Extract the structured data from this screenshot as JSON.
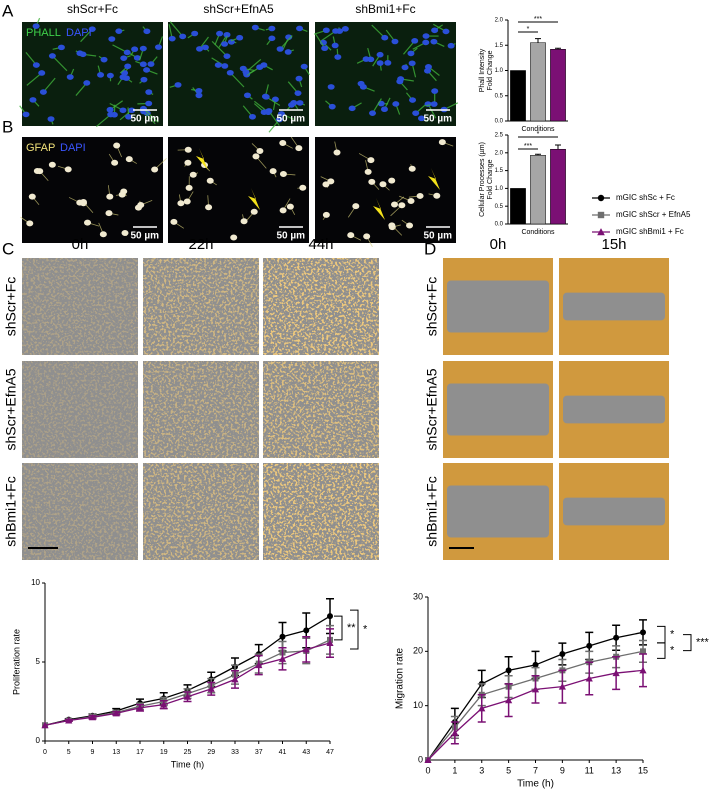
{
  "panel_labels": [
    "A",
    "B",
    "C",
    "D"
  ],
  "panel_a": {
    "columns": [
      "shScr+Fc",
      "shScr+EfnA5",
      "shBmi1+Fc"
    ],
    "stains": [
      "PHALL",
      "DAPI"
    ]
  },
  "panel_b": {
    "stains": [
      "GFAP",
      "DAPI"
    ]
  },
  "scale_bar": "50 µm",
  "panel_c": {
    "times": [
      "0h",
      "22h",
      "44h"
    ],
    "rows": [
      "shScr+Fc",
      "shScr+EfnA5",
      "shBmi1+Fc"
    ]
  },
  "panel_d": {
    "times": [
      "0h",
      "15h"
    ],
    "rows": [
      "shScr+Fc",
      "shScr+EfnA5",
      "shBmi1+Fc"
    ]
  },
  "chart_data": [
    {
      "type": "bar",
      "ylabel": "Phall Intensity\nFold Change",
      "xlabel": "Conditions",
      "categories": [
        null,
        null,
        null
      ],
      "values": [
        1.0,
        1.55,
        1.42
      ],
      "errors": [
        0,
        0.08,
        0.02
      ],
      "colors": [
        "#000000",
        "#a6a6a6",
        "#7b1074"
      ],
      "ylim": [
        0,
        2
      ],
      "yticks": [
        {
          "value": 0,
          "label": "0.0"
        },
        {
          "value": 0.5,
          "label": "0.5"
        },
        {
          "value": 1,
          "label": "1.0"
        },
        {
          "value": 1.5,
          "label": "1.5"
        },
        {
          "value": 2,
          "label": "2.0"
        }
      ],
      "annotations": [
        "***",
        "*"
      ]
    },
    {
      "type": "bar",
      "ylabel": "Cellular Processes (µm)\nFold Change",
      "xlabel": "Conditions",
      "categories": [
        null,
        null,
        null
      ],
      "values": [
        1.0,
        1.93,
        2.1
      ],
      "errors": [
        0,
        0.03,
        0.12
      ],
      "colors": [
        "#000000",
        "#a6a6a6",
        "#7b1074"
      ],
      "ylim": [
        0,
        2.5
      ],
      "yticks": [
        {
          "value": 0,
          "label": "0.0"
        },
        {
          "value": 0.5,
          "label": "0.5"
        },
        {
          "value": 1,
          "label": "1.0"
        },
        {
          "value": 1.5,
          "label": "1.5"
        },
        {
          "value": 2,
          "label": "2.0"
        },
        {
          "value": 2.5,
          "label": "2.5"
        }
      ],
      "annotations": [
        "*",
        "***"
      ]
    },
    {
      "type": "line",
      "ylabel": "Proliferation rate",
      "xlabel": "Time (h)",
      "categories": [
        "0",
        "5",
        "9",
        "13",
        "17",
        "19",
        "25",
        "29",
        "33",
        "37",
        "41",
        "43",
        "47"
      ],
      "ylim": [
        0,
        10
      ],
      "yticks": [
        0,
        5,
        10
      ],
      "series": [
        {
          "name": "mGIC shSc + Fc",
          "color": "#000000",
          "marker": "circle",
          "values": [
            1,
            1.35,
            1.6,
            1.9,
            2.4,
            2.7,
            3.2,
            3.9,
            4.7,
            5.5,
            6.6,
            7.0,
            7.9
          ],
          "errors": [
            0,
            0.05,
            0.1,
            0.15,
            0.25,
            0.35,
            0.35,
            0.45,
            0.55,
            0.6,
            0.9,
            1.1,
            1.1
          ]
        },
        {
          "name": "mGIC shScr + EfnA5",
          "color": "#6e6e6e",
          "marker": "square",
          "values": [
            1,
            1.3,
            1.55,
            1.8,
            2.2,
            2.5,
            3.0,
            3.5,
            4.2,
            4.9,
            5.6,
            5.7,
            6.4
          ],
          "errors": [
            0,
            0.05,
            0.1,
            0.1,
            0.2,
            0.25,
            0.3,
            0.45,
            0.6,
            0.6,
            0.7,
            0.8,
            0.9
          ]
        },
        {
          "name": "mGIC shBmi1 + Fc",
          "color": "#7b1074",
          "marker": "triangle",
          "values": [
            1,
            1.3,
            1.5,
            1.75,
            2.1,
            2.3,
            2.8,
            3.3,
            3.9,
            4.8,
            5.2,
            5.8,
            6.2
          ],
          "errors": [
            0,
            0.05,
            0.1,
            0.1,
            0.2,
            0.25,
            0.3,
            0.4,
            0.55,
            0.6,
            0.7,
            0.8,
            0.9
          ]
        }
      ],
      "annotations": [
        "**",
        "*"
      ]
    },
    {
      "type": "line",
      "ylabel": "Migration rate",
      "xlabel": "Time (h)",
      "categories": [
        "0",
        "1",
        "3",
        "5",
        "7",
        "9",
        "11",
        "13",
        "15"
      ],
      "ylim": [
        0,
        30
      ],
      "yticks": [
        0,
        10,
        20,
        30
      ],
      "series": [
        {
          "name": "mGIC shSc + Fc",
          "color": "#000000",
          "marker": "circle",
          "values": [
            0,
            7,
            14,
            16.5,
            17.5,
            19.5,
            21,
            22.5,
            23.5
          ],
          "errors": [
            0,
            2.5,
            2.5,
            2.5,
            2.5,
            2,
            2.5,
            2.3,
            2.3
          ]
        },
        {
          "name": "mGIC shScr + EfnA5",
          "color": "#6e6e6e",
          "marker": "square",
          "values": [
            0,
            6,
            12,
            13.5,
            15,
            16.5,
            18,
            19,
            20
          ],
          "errors": [
            0,
            2,
            2,
            2,
            2,
            2,
            2,
            2,
            2
          ]
        },
        {
          "name": "mGIC shBmi1 + Fc",
          "color": "#7b1074",
          "marker": "triangle",
          "values": [
            0,
            5,
            9.5,
            11,
            13,
            13.5,
            15,
            16,
            16.5
          ],
          "errors": [
            0,
            2,
            2.5,
            3,
            2.5,
            3,
            3,
            3,
            3
          ]
        }
      ],
      "annotations": [
        "*",
        "*",
        "***"
      ]
    }
  ]
}
